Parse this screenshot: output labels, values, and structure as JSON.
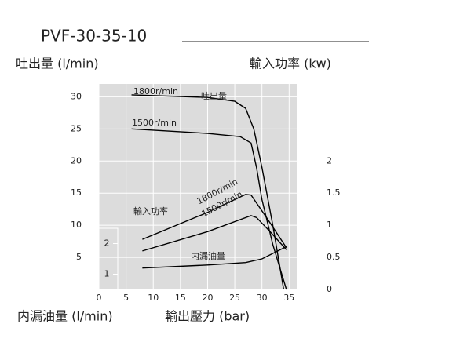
{
  "chart_data": {
    "type": "line",
    "title": "PVF-30-35-10",
    "y_label": "吐出量 (l/min)",
    "y2_label": "輸入功率 (kw)",
    "y3_label": "内漏油量 (l/min)",
    "x_label": "輸出壓力 (bar)",
    "group_labels": [
      "吐出量",
      "輸入功率",
      "内漏油量"
    ],
    "xlim": [
      0,
      36.4
    ],
    "xticks": [
      0,
      5,
      10,
      15,
      20,
      25,
      30,
      35
    ],
    "ylim": [
      0,
      32
    ],
    "yticks": [
      5,
      10,
      15,
      20,
      25,
      30
    ],
    "y2lim": [
      0,
      3.2
    ],
    "y2ticks": [
      0,
      0.5,
      1,
      1.5,
      2
    ],
    "y3lim": [
      0.5,
      2.5
    ],
    "y3ticks": [
      1,
      2
    ],
    "grid": true,
    "color": "#000000",
    "series": [
      {
        "name": "1800r/min",
        "axis": "y",
        "x": [
          6,
          20,
          25,
          27,
          28.5,
          30,
          32,
          34
        ],
        "values": [
          30.3,
          29.9,
          29.3,
          28.2,
          25,
          19,
          10,
          0
        ]
      },
      {
        "name": "1500r/min",
        "axis": "y",
        "x": [
          6,
          20,
          26,
          28,
          29,
          30,
          32,
          34.5
        ],
        "values": [
          25,
          24.3,
          23.8,
          22.8,
          19,
          14,
          7,
          0
        ]
      },
      {
        "name": "1800r/min",
        "axis": "y2",
        "x": [
          8,
          20,
          27,
          28,
          31,
          34.5
        ],
        "values": [
          0.78,
          1.2,
          1.48,
          1.47,
          1.1,
          0.65
        ]
      },
      {
        "name": "1500r/min",
        "axis": "y2",
        "x": [
          8,
          20,
          28,
          29,
          31.5,
          34.5
        ],
        "values": [
          0.6,
          0.9,
          1.15,
          1.12,
          0.9,
          0.62
        ]
      },
      {
        "name": "内漏油量",
        "axis": "y3",
        "x": [
          8,
          20,
          27,
          30,
          34.5
        ],
        "values": [
          1.2,
          1.3,
          1.38,
          1.5,
          1.9
        ]
      }
    ]
  }
}
